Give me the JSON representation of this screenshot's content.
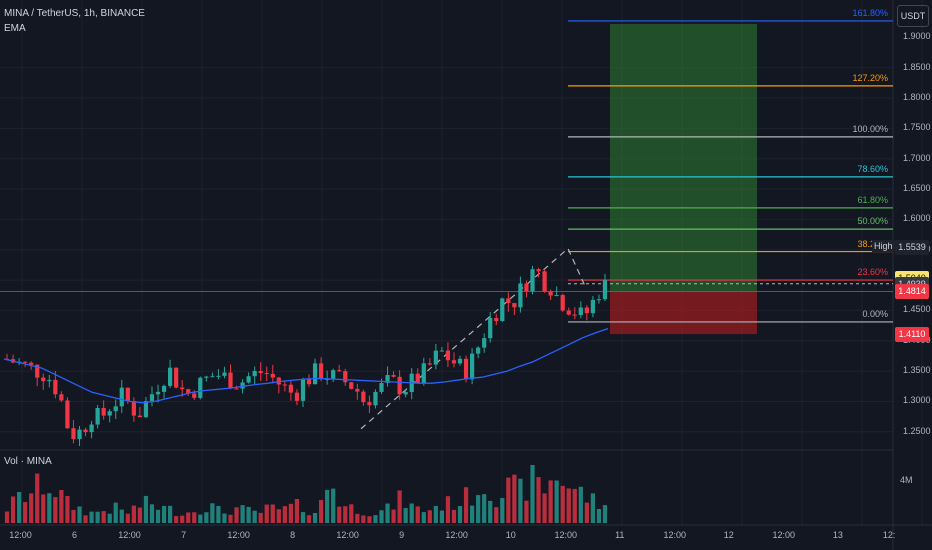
{
  "header": {
    "symbol": "MINA / TetherUS, 1h, BINANCE",
    "indicator": "EMA",
    "volume_label": "Vol · MINA"
  },
  "currency_button": "USDT",
  "price_axis": [
    "1.9000",
    "1.8500",
    "1.8000",
    "1.7500",
    "1.7000",
    "1.6500",
    "1.6000",
    "1.5500",
    "1.4500",
    "1.4000",
    "1.3500",
    "1.3000",
    "1.2500"
  ],
  "volume_axis": "4M",
  "price_tags": [
    {
      "text": "1.5539",
      "price": 1.5539,
      "bg": "#1e222d",
      "fg": "#d1d4dc"
    },
    {
      "text": "1.5040",
      "price": 1.504,
      "bg": "#fbe46b",
      "fg": "#131722"
    },
    {
      "text": "1.4939",
      "price": 1.4939,
      "bg": "#363a45",
      "fg": "#d1d4dc"
    },
    {
      "text": "1.4814",
      "price": 1.4814,
      "bg": "#f23645",
      "fg": "#ffffff"
    },
    {
      "text": "1.4110",
      "price": 1.411,
      "bg": "#f23645",
      "fg": "#ffffff"
    }
  ],
  "high_label": "High",
  "fib_levels": [
    {
      "label": "161.80%",
      "price": 1.927,
      "color": "#2962ff"
    },
    {
      "label": "127.20%",
      "price": 1.82,
      "color": "#ff9800"
    },
    {
      "label": "100.00%",
      "price": 1.736,
      "color": "#b2b5be"
    },
    {
      "label": "78.60%",
      "price": 1.67,
      "color": "#26c6da"
    },
    {
      "label": "61.80%",
      "price": 1.619,
      "color": "#4caf50"
    },
    {
      "label": "50.00%",
      "price": 1.584,
      "color": "#66bb6a"
    },
    {
      "label": "38.20%",
      "price": 1.547,
      "color": "#ff9800"
    },
    {
      "label": "23.60%",
      "price": 1.5,
      "color": "#f23645"
    },
    {
      "label": "0.00%",
      "price": 1.431,
      "color": "#b2b5be"
    }
  ],
  "time_axis": [
    {
      "label": "12:00",
      "pos": 0.022
    },
    {
      "label": "6",
      "pos": 0.08
    },
    {
      "label": "12:00",
      "pos": 0.139
    },
    {
      "label": "7",
      "pos": 0.197
    },
    {
      "label": "12:00",
      "pos": 0.256
    },
    {
      "label": "8",
      "pos": 0.314
    },
    {
      "label": "12:00",
      "pos": 0.373
    },
    {
      "label": "9",
      "pos": 0.431
    },
    {
      "label": "12:00",
      "pos": 0.49
    },
    {
      "label": "10",
      "pos": 0.548
    },
    {
      "label": "12:00",
      "pos": 0.607
    },
    {
      "label": "11",
      "pos": 0.665
    },
    {
      "label": "12:00",
      "pos": 0.724
    },
    {
      "label": "12",
      "pos": 0.782
    },
    {
      "label": "12:00",
      "pos": 0.841
    },
    {
      "label": "13",
      "pos": 0.899
    },
    {
      "label": "12:",
      "pos": 0.954
    }
  ],
  "colors": {
    "up": "#26a69a",
    "down": "#f23645",
    "ema": "#2962ff",
    "bg": "#131722",
    "grid": "#1e222d",
    "target_zone": "#2e7d32",
    "stop_zone": "#b71c1c"
  },
  "chart_data": {
    "type": "candlestick",
    "symbol": "MINA / TetherUS",
    "interval": "1h",
    "exchange": "BINANCE",
    "ylim": [
      1.22,
      1.945
    ],
    "close_path": [
      1.37,
      1.365,
      1.36,
      1.355,
      1.35,
      1.345,
      1.33,
      1.3,
      1.25,
      1.245,
      1.26,
      1.28,
      1.27,
      1.29,
      1.3,
      1.31,
      1.29,
      1.28,
      1.3,
      1.32,
      1.34,
      1.35,
      1.33,
      1.31,
      1.32,
      1.33,
      1.34,
      1.345,
      1.34,
      1.335,
      1.33,
      1.34,
      1.345,
      1.35,
      1.34,
      1.33,
      1.32,
      1.31,
      1.33,
      1.34,
      1.35,
      1.345,
      1.34,
      1.335,
      1.33,
      1.32,
      1.3,
      1.31,
      1.32,
      1.33,
      1.33,
      1.32,
      1.33,
      1.34,
      1.35,
      1.37,
      1.38,
      1.37,
      1.36,
      1.35,
      1.37,
      1.4,
      1.43,
      1.45,
      1.47,
      1.46,
      1.48,
      1.5,
      1.52,
      1.5,
      1.49,
      1.47,
      1.46,
      1.45,
      1.44,
      1.45,
      1.48,
      1.49
    ],
    "ema_path": [
      1.37,
      1.365,
      1.36,
      1.355,
      1.345,
      1.335,
      1.325,
      1.315,
      1.31,
      1.305,
      1.3,
      1.298,
      1.3,
      1.305,
      1.31,
      1.315,
      1.318,
      1.32,
      1.322,
      1.325,
      1.328,
      1.33,
      1.333,
      1.335,
      1.337,
      1.338,
      1.337,
      1.336,
      1.335,
      1.334,
      1.333,
      1.332,
      1.331,
      1.33,
      1.33,
      1.332,
      1.335,
      1.338,
      1.34,
      1.345,
      1.35,
      1.358,
      1.365,
      1.375,
      1.385,
      1.395,
      1.405,
      1.413,
      1.42
    ],
    "volume_path": [
      0.3,
      0.5,
      0.6,
      0.8,
      0.7,
      0.4,
      0.3,
      0.2,
      0.25,
      0.3,
      0.2,
      0.35,
      0.4,
      0.3,
      0.25,
      0.2,
      0.3,
      0.35,
      0.2,
      0.3,
      0.25,
      0.2,
      0.3,
      0.25,
      0.35,
      0.3,
      0.2,
      0.9,
      0.35,
      0.3,
      0.25,
      0.2,
      0.3,
      0.5,
      0.3,
      0.25,
      0.35,
      0.4,
      0.45,
      0.6,
      0.8,
      0.55,
      0.7,
      0.65,
      0.85,
      0.7,
      1.0,
      0.75,
      0.6,
      0.45,
      0.3
    ],
    "last_price": 1.4939,
    "session_high": 1.5539
  }
}
